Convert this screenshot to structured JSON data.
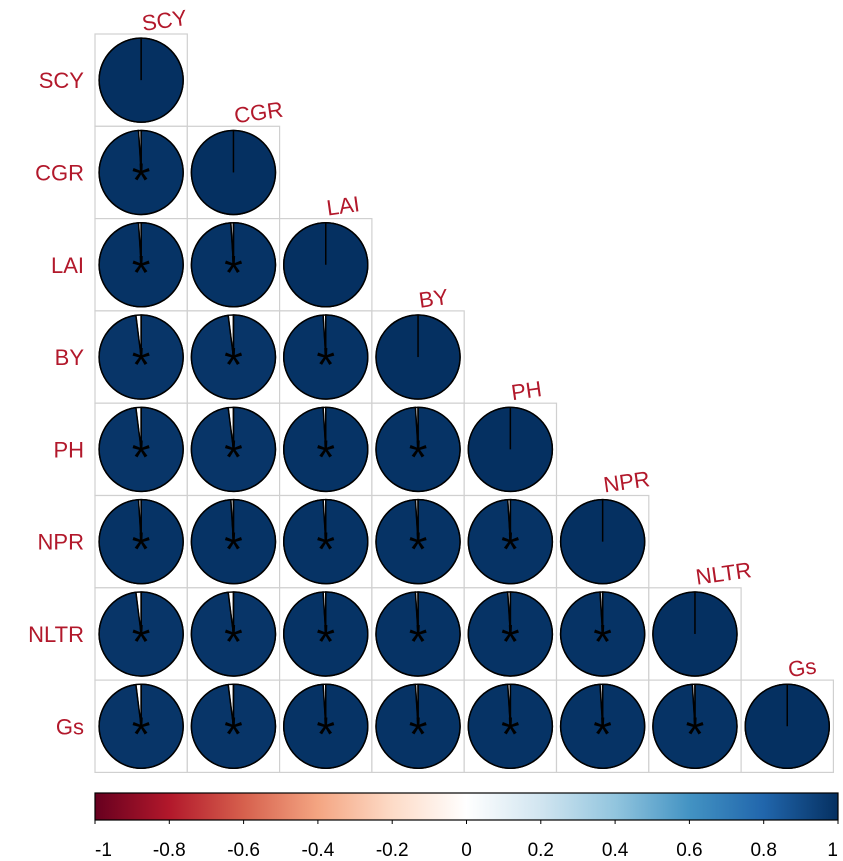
{
  "chart_data": {
    "type": "heatmap",
    "glyph": "pie",
    "layout": "lower-triangle",
    "variables": [
      "SCY",
      "CGR",
      "LAI",
      "BY",
      "PH",
      "NPR",
      "NLTR",
      "Gs"
    ],
    "values": [
      [
        1.0
      ],
      [
        0.99,
        1.0
      ],
      [
        0.99,
        0.99,
        1.0
      ],
      [
        0.98,
        0.98,
        0.99,
        1.0
      ],
      [
        0.98,
        0.98,
        0.99,
        0.99,
        1.0
      ],
      [
        0.99,
        0.99,
        0.99,
        0.99,
        0.99,
        1.0
      ],
      [
        0.98,
        0.98,
        0.99,
        0.99,
        0.99,
        0.99,
        1.0
      ],
      [
        0.98,
        0.98,
        0.99,
        0.99,
        0.99,
        0.99,
        0.99,
        1.0
      ]
    ],
    "significance_marker": "*",
    "significant_mask": "all off-diagonal cells",
    "colorbar": {
      "range": [
        -1,
        1
      ],
      "ticks": [
        "-1",
        "-0.8",
        "-0.6",
        "-0.4",
        "-0.2",
        "0",
        "0.2",
        "0.4",
        "0.6",
        "0.8",
        "1"
      ],
      "colors": [
        "#67001f",
        "#b2182b",
        "#d6604d",
        "#f4a582",
        "#fddbc7",
        "#ffffff",
        "#d1e5f0",
        "#92c5de",
        "#4393c3",
        "#2166ac",
        "#053061"
      ]
    },
    "label_color": "#b2182b",
    "grid": true
  }
}
